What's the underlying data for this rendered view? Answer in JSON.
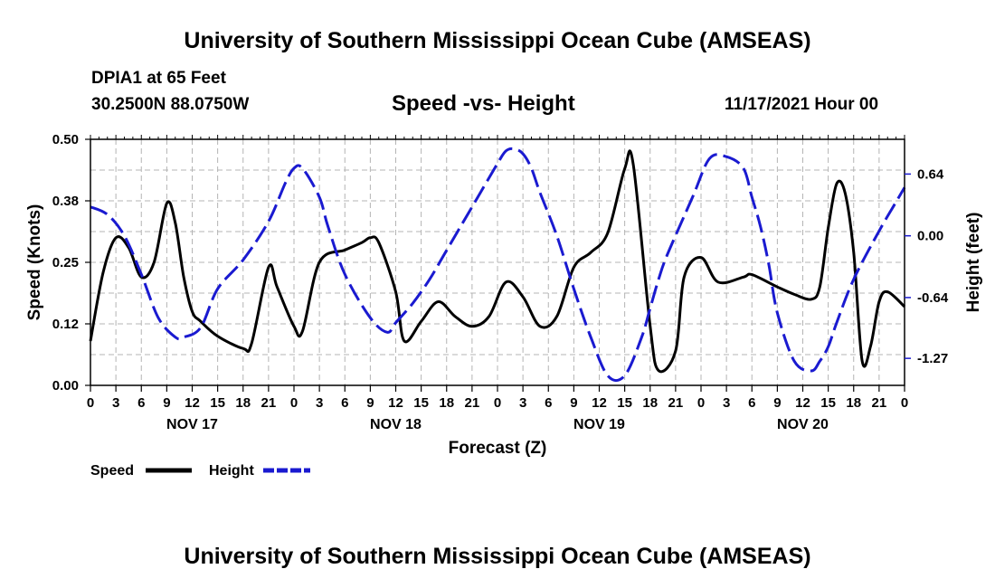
{
  "header": {
    "title": "University of Southern Mississippi Ocean Cube (AMSEAS)",
    "station": "DPIA1 at 65 Feet",
    "coords": "30.2500N  88.0750W",
    "date": "11/17/2021 Hour 00"
  },
  "footer": {
    "title": "University of Southern Mississippi Ocean Cube (AMSEAS)"
  },
  "chart_data": {
    "type": "line",
    "title": "Speed -vs- Height",
    "xlabel": "Forecast (Z)",
    "ylabel": "Speed (Knots)",
    "y2label": "Height (feet)",
    "xlim": [
      0,
      96
    ],
    "ylim": [
      0,
      0.5
    ],
    "y2lim": [
      -1.55,
      1.0
    ],
    "grid": true,
    "x_tick_labels": [
      "0",
      "3",
      "6",
      "9",
      "12",
      "15",
      "18",
      "21",
      "0",
      "3",
      "6",
      "9",
      "12",
      "15",
      "18",
      "21",
      "0",
      "3",
      "6",
      "9",
      "12",
      "15",
      "18",
      "21",
      "0",
      "3",
      "6",
      "9",
      "12",
      "15",
      "18",
      "21",
      "0"
    ],
    "day_labels": [
      {
        "hour": 12,
        "label": "NOV 17"
      },
      {
        "hour": 36,
        "label": "NOV 18"
      },
      {
        "hour": 60,
        "label": "NOV 19"
      },
      {
        "hour": 84,
        "label": "NOV 20"
      }
    ],
    "y_ticks": [
      {
        "value": 0.0,
        "label": "0.00"
      },
      {
        "value": 0.125,
        "label": "0.12"
      },
      {
        "value": 0.25,
        "label": "0.25"
      },
      {
        "value": 0.375,
        "label": "0.38"
      },
      {
        "value": 0.5,
        "label": "0.50"
      }
    ],
    "y2_ticks": [
      {
        "value": 0.64,
        "label": "0.64"
      },
      {
        "value": 0.0,
        "label": "0.00"
      },
      {
        "value": -0.64,
        "label": "-0.64"
      },
      {
        "value": -1.27,
        "label": "-1.27"
      }
    ],
    "legend": [
      "Speed",
      "Height"
    ],
    "series": [
      {
        "name": "Speed",
        "axis": "left",
        "color": "#000000",
        "dash": "solid",
        "x": [
          0,
          1.5,
          3,
          4.5,
          6,
          7.5,
          9,
          10,
          11,
          12,
          13,
          15,
          18,
          19,
          21,
          22,
          24,
          25,
          27,
          30,
          32,
          33,
          34,
          36,
          37,
          39,
          41,
          43,
          45,
          47,
          49,
          51,
          53,
          55,
          57,
          59,
          61,
          63,
          64,
          66,
          67,
          69,
          70,
          72,
          74,
          77,
          78,
          81,
          83,
          85,
          86,
          87,
          88,
          89,
          90,
          91,
          92,
          93,
          94,
          96
        ],
        "values": [
          0.09,
          0.23,
          0.3,
          0.28,
          0.22,
          0.25,
          0.37,
          0.33,
          0.22,
          0.15,
          0.13,
          0.1,
          0.075,
          0.085,
          0.24,
          0.2,
          0.12,
          0.11,
          0.25,
          0.275,
          0.29,
          0.3,
          0.29,
          0.19,
          0.09,
          0.13,
          0.17,
          0.14,
          0.12,
          0.14,
          0.21,
          0.18,
          0.12,
          0.14,
          0.24,
          0.27,
          0.31,
          0.44,
          0.45,
          0.12,
          0.03,
          0.07,
          0.22,
          0.26,
          0.21,
          0.22,
          0.225,
          0.2,
          0.185,
          0.175,
          0.2,
          0.32,
          0.41,
          0.39,
          0.27,
          0.05,
          0.08,
          0.17,
          0.19,
          0.16
        ]
      },
      {
        "name": "Height",
        "axis": "right",
        "color": "#1a1ad0",
        "dash": "dashed",
        "x": [
          0,
          2,
          4,
          6,
          8,
          10,
          11,
          13,
          15,
          18,
          21,
          23,
          24,
          25,
          27,
          28,
          30,
          33,
          35,
          36,
          38,
          40,
          42,
          45,
          48,
          49,
          50,
          51,
          52,
          53,
          55,
          57,
          59,
          61,
          63,
          65,
          66,
          67,
          68,
          71,
          73,
          75,
          77,
          78,
          79,
          80,
          81,
          83,
          85,
          86,
          87,
          88,
          90,
          93,
          95,
          96
        ],
        "values": [
          0.3,
          0.22,
          0.0,
          -0.4,
          -0.85,
          -1.05,
          -1.05,
          -0.95,
          -0.55,
          -0.25,
          0.15,
          0.55,
          0.7,
          0.7,
          0.4,
          0.1,
          -0.4,
          -0.85,
          -1.0,
          -0.9,
          -0.7,
          -0.45,
          -0.15,
          0.3,
          0.75,
          0.88,
          0.9,
          0.85,
          0.7,
          0.45,
          0.0,
          -0.55,
          -1.05,
          -1.45,
          -1.45,
          -1.05,
          -0.75,
          -0.45,
          -0.2,
          0.4,
          0.8,
          0.82,
          0.7,
          0.4,
          0.1,
          -0.3,
          -0.8,
          -1.3,
          -1.4,
          -1.3,
          -1.15,
          -0.9,
          -0.45,
          0.05,
          0.35,
          0.5
        ]
      }
    ]
  }
}
